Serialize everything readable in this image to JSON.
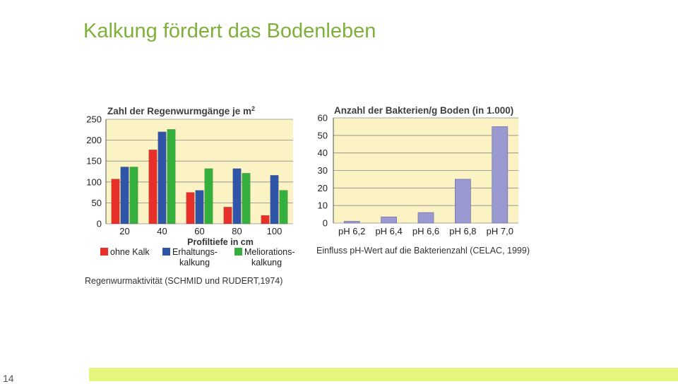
{
  "slide": {
    "title": "Kalkung fördert das Bodenleben",
    "page_number": "14"
  },
  "colors": {
    "title": "#7fb03a",
    "plot_background": "#fbf3c3",
    "footer_bar": "#e6f57c"
  },
  "chart_data": [
    {
      "type": "bar",
      "title": "Zahl der Regenwurmgänge je m",
      "title_superscript": "2",
      "categories": [
        "20",
        "40",
        "60",
        "80",
        "100"
      ],
      "series": [
        {
          "name": "ohne Kalk",
          "color": "#e8302a",
          "values": [
            107,
            177,
            75,
            40,
            20
          ]
        },
        {
          "name": "Erhaltungs-kalkung",
          "name_lines": [
            "Erhaltungs-",
            "kalkung"
          ],
          "color": "#2f55a8",
          "values": [
            136,
            220,
            80,
            132,
            116
          ]
        },
        {
          "name": "Meliorations-kalkung",
          "name_lines": [
            "Meliorations-",
            "kalkung"
          ],
          "color": "#35b03d",
          "values": [
            136,
            226,
            132,
            121,
            80
          ]
        }
      ],
      "xlabel": "Profiltiefe in cm",
      "ylabel": "",
      "ylim": [
        0,
        250
      ],
      "yticks": [
        0,
        50,
        100,
        150,
        200,
        250
      ],
      "grid": true,
      "legend": "bottom",
      "caption": "Regenwurmaktivität (SCHMID und RUDERT,1974)"
    },
    {
      "type": "bar",
      "title": "Anzahl der Bakterien/g Boden (in 1.000)",
      "categories": [
        "pH 6,2",
        "pH 6,4",
        "pH 6,6",
        "pH 6,8",
        "pH 7,0"
      ],
      "values": [
        1,
        3.5,
        6,
        25,
        55
      ],
      "color": "#9a9ad0",
      "xlabel": "",
      "ylabel": "",
      "ylim": [
        0,
        60
      ],
      "yticks": [
        0,
        10,
        20,
        30,
        40,
        50,
        60
      ],
      "grid": true,
      "caption": "Einfluss pH-Wert auf die Bakterienzahl (CELAC, 1999)"
    }
  ]
}
